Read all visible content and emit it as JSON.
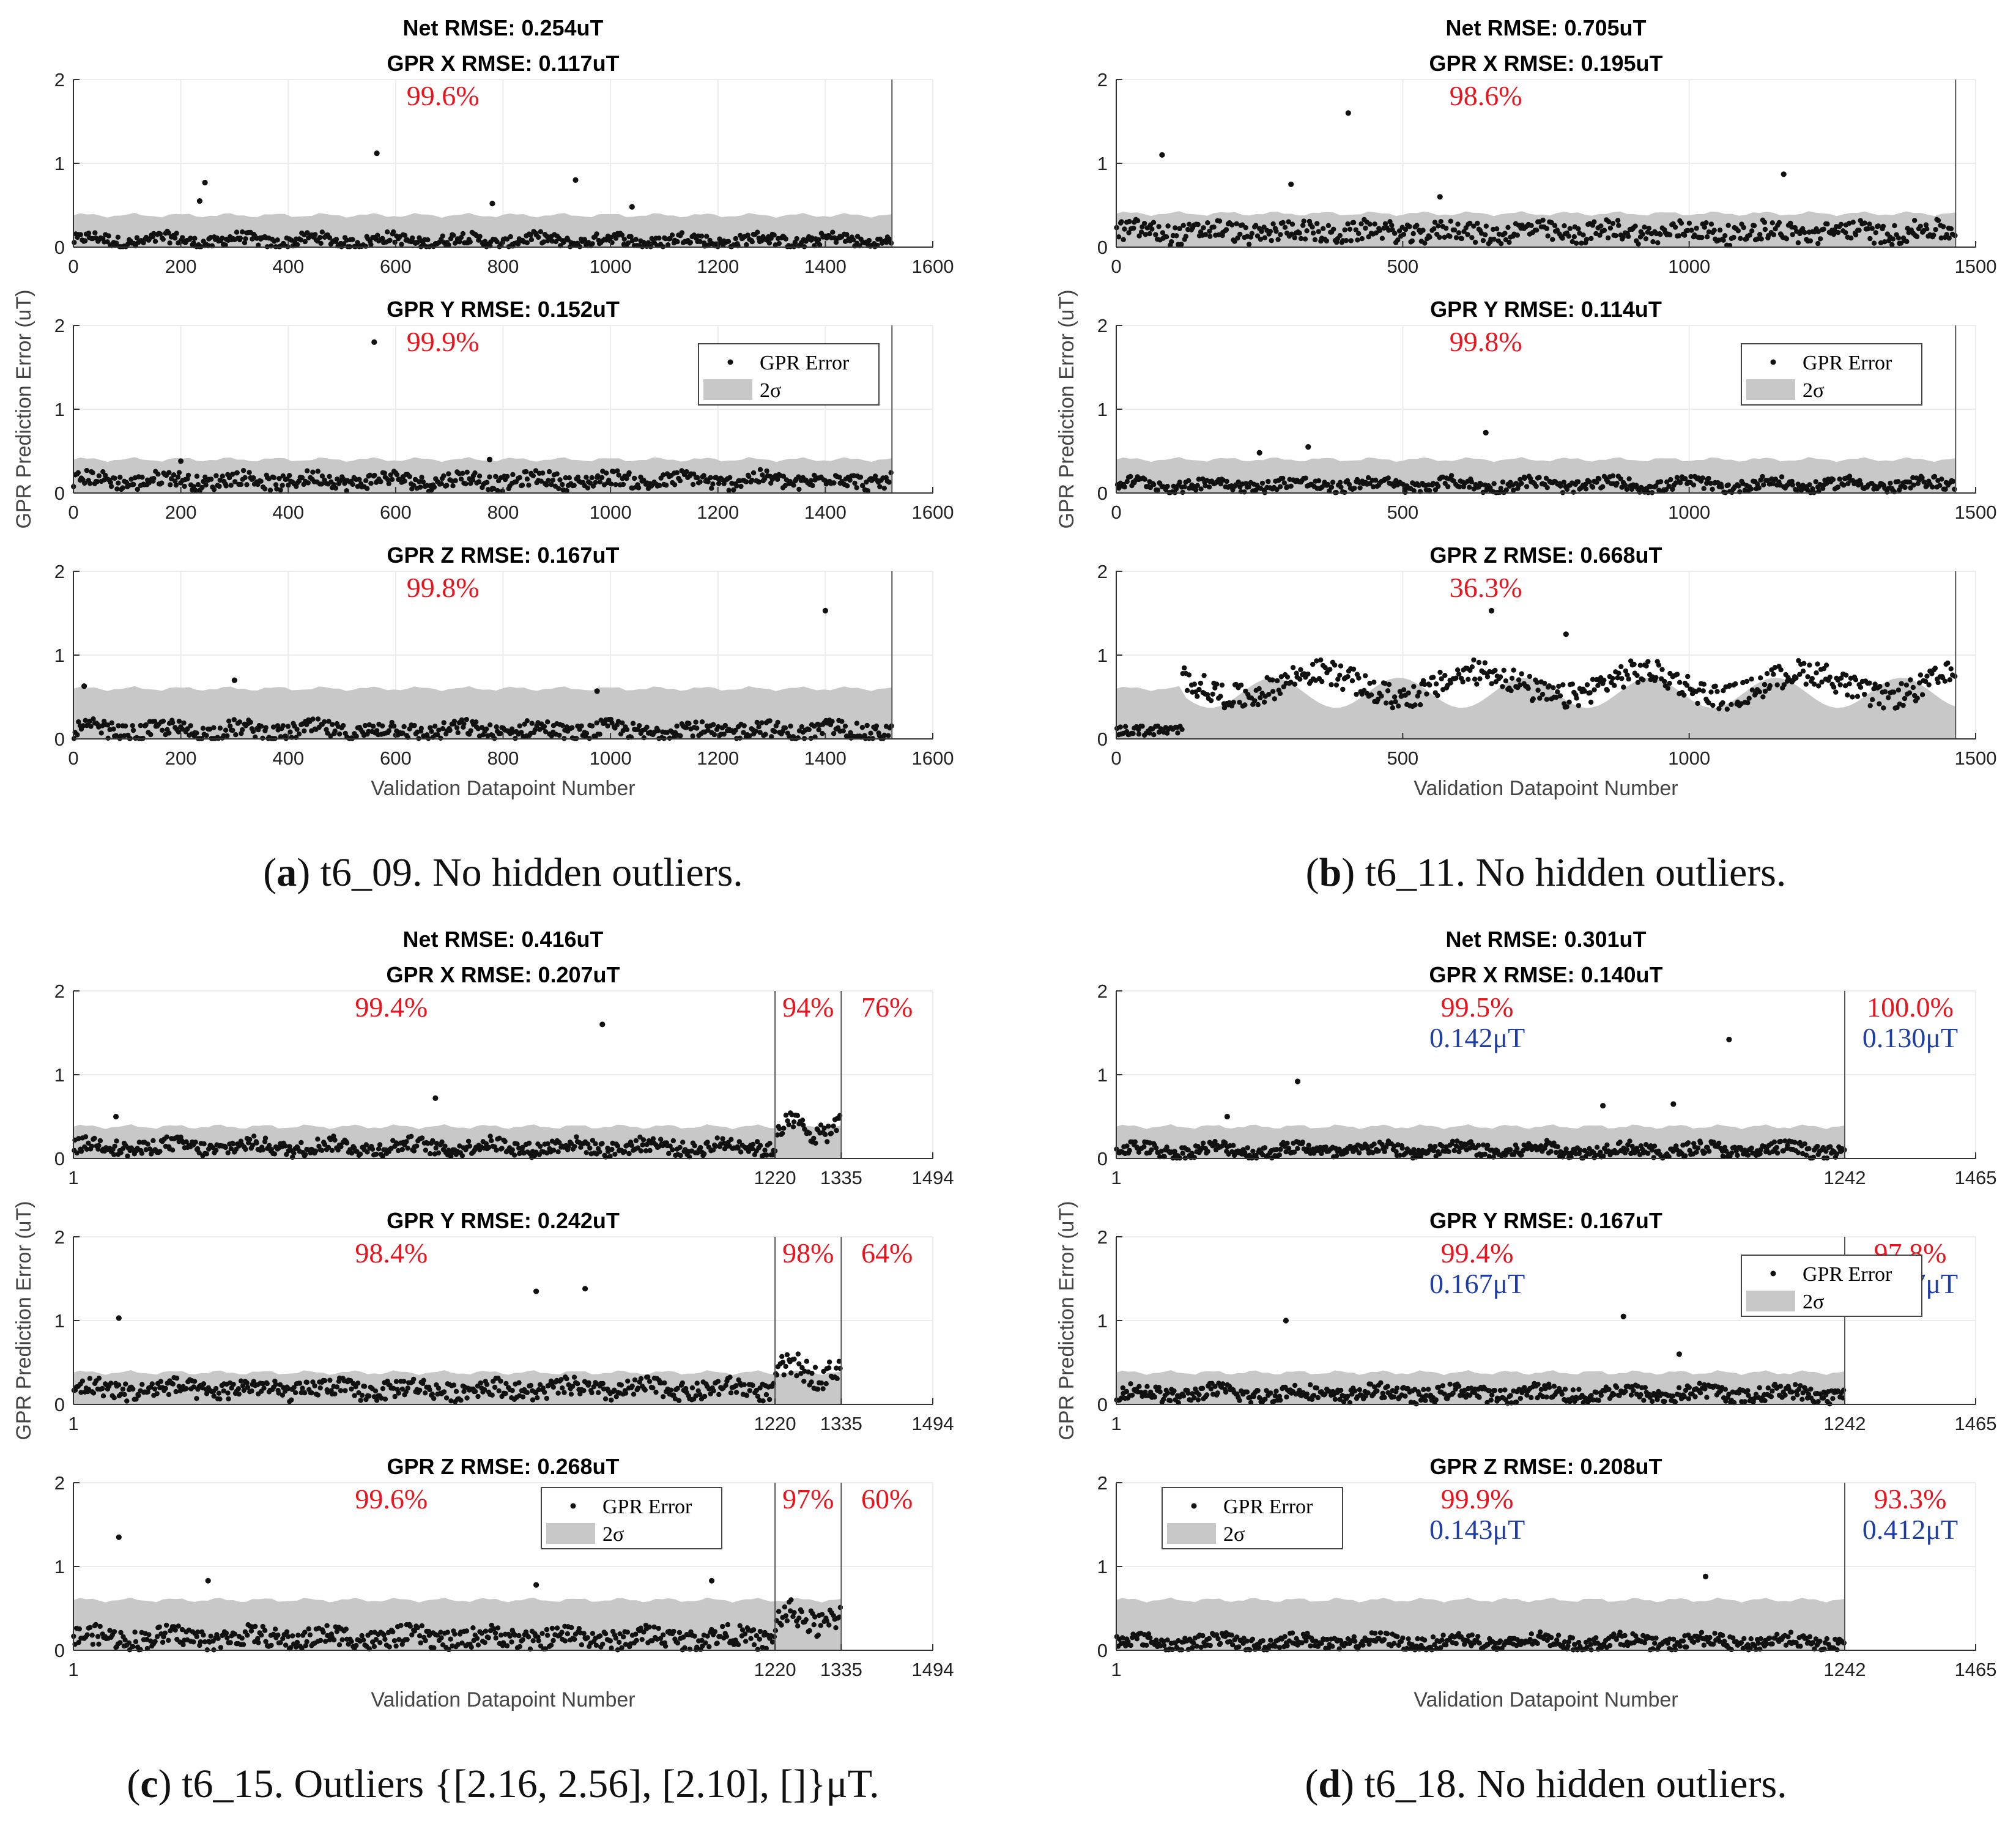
{
  "common": {
    "ylabel": "GPR Prediction Error (uT)",
    "xlabel": "Validation Datapoint Number",
    "legend": {
      "dot_label": "GPR Error",
      "band_label": "2σ"
    }
  },
  "panels": [
    {
      "caption_letter": "a",
      "caption_text": "t6_09. No hidden outliers.",
      "net_title": "Net RMSE: 0.254uT",
      "subplots": [
        {
          "title": "GPR X RMSE: 0.117uT",
          "xlim": [
            0,
            1600
          ],
          "xticks": [
            "0",
            "200",
            "400",
            "600",
            "800",
            "1000",
            "1200",
            "1400",
            "1600"
          ],
          "boundaries": [
            1524
          ],
          "pct": [
            "99.6%"
          ],
          "rmse": [],
          "band": 0.38,
          "base": 0.08,
          "spread": 0.07,
          "outliers": [
            [
              235,
              0.55
            ],
            [
              245,
              0.77
            ],
            [
              565,
              1.12
            ],
            [
              780,
              0.52
            ],
            [
              935,
              0.8
            ],
            [
              1040,
              0.48
            ]
          ]
        },
        {
          "title": "GPR Y RMSE: 0.152uT",
          "xlim": [
            0,
            1600
          ],
          "xticks": [
            "0",
            "200",
            "400",
            "600",
            "800",
            "1000",
            "1200",
            "1400",
            "1600"
          ],
          "boundaries": [
            1524
          ],
          "pct": [
            "99.9%"
          ],
          "rmse": [],
          "band": 0.4,
          "base": 0.15,
          "spread": 0.09,
          "legend": true,
          "outliers": [
            [
              560,
              1.8
            ],
            [
              200,
              0.38
            ],
            [
              775,
              0.4
            ]
          ]
        },
        {
          "title": "GPR Z RMSE: 0.167uT",
          "xlim": [
            0,
            1600
          ],
          "xticks": [
            "0",
            "200",
            "400",
            "600",
            "800",
            "1000",
            "1200",
            "1400",
            "1600"
          ],
          "boundaries": [
            1524
          ],
          "pct": [
            "99.8%"
          ],
          "rmse": [],
          "band": 0.6,
          "base": 0.1,
          "spread": 0.1,
          "outliers": [
            [
              20,
              0.63
            ],
            [
              300,
              0.7
            ],
            [
              1400,
              1.53
            ],
            [
              975,
              0.57
            ]
          ]
        }
      ]
    },
    {
      "caption_letter": "b",
      "caption_text": "t6_11. No hidden outliers.",
      "net_title": "Net RMSE: 0.705uT",
      "subplots": [
        {
          "title": "GPR X RMSE: 0.195uT",
          "xlim": [
            0,
            1500
          ],
          "xticks": [
            "0",
            "500",
            "1000",
            "1500"
          ],
          "boundaries": [
            1465
          ],
          "pct": [
            "98.6%"
          ],
          "rmse": [],
          "band": 0.4,
          "base": 0.18,
          "spread": 0.12,
          "outliers": [
            [
              80,
              1.1
            ],
            [
              305,
              0.75
            ],
            [
              405,
              1.6
            ],
            [
              565,
              0.6
            ],
            [
              1165,
              0.87
            ]
          ]
        },
        {
          "title": "GPR Y RMSE: 0.114uT",
          "xlim": [
            0,
            1500
          ],
          "xticks": [
            "0",
            "500",
            "1000",
            "1500"
          ],
          "boundaries": [
            1465
          ],
          "pct": [
            "99.8%"
          ],
          "rmse": [],
          "band": 0.4,
          "base": 0.1,
          "spread": 0.07,
          "legend": true,
          "outliers": [
            [
              250,
              0.48
            ],
            [
              335,
              0.55
            ],
            [
              645,
              0.72
            ]
          ]
        },
        {
          "title": "GPR Z RMSE: 0.668uT",
          "xlim": [
            0,
            1500
          ],
          "xticks": [
            "0",
            "500",
            "1000",
            "1500"
          ],
          "boundaries": [
            1465
          ],
          "pct": [
            "36.3%"
          ],
          "rmse": [],
          "band": 0.6,
          "base": 0.65,
          "spread": 0.15,
          "lowUntil": 115,
          "outliers": [
            [
              655,
              1.53
            ],
            [
              785,
              1.25
            ]
          ]
        }
      ]
    },
    {
      "caption_letter": "c",
      "caption_text": "t6_15. Outliers {[2.16, 2.56], [2.10], []}μT.",
      "net_title": "Net RMSE: 0.416uT",
      "subplots": [
        {
          "title": "GPR X RMSE: 0.207uT",
          "xlim": [
            1,
            1494
          ],
          "xticks": [],
          "xtickvals": [
            [
              "1",
              1
            ],
            [
              "1220",
              1220
            ],
            [
              "1335",
              1335
            ],
            [
              "1494",
              1494
            ]
          ],
          "boundaries": [
            1220,
            1335
          ],
          "pct": [
            "99.4%",
            "94%",
            "76%"
          ],
          "rmse": [],
          "band": 0.38,
          "base": 0.14,
          "spread": 0.09,
          "outliers": [
            [
              75,
              0.5
            ],
            [
              630,
              0.72
            ],
            [
              920,
              1.6
            ]
          ]
        },
        {
          "title": "GPR Y RMSE: 0.242uT",
          "xlim": [
            1,
            1494
          ],
          "xticks": [],
          "xtickvals": [
            [
              "1",
              1
            ],
            [
              "1220",
              1220
            ],
            [
              "1335",
              1335
            ],
            [
              "1494",
              1494
            ]
          ],
          "boundaries": [
            1220,
            1335
          ],
          "pct": [
            "98.4%",
            "98%",
            "64%"
          ],
          "rmse": [],
          "band": 0.38,
          "base": 0.18,
          "spread": 0.11,
          "outliers": [
            [
              80,
              1.03
            ],
            [
              805,
              1.35
            ],
            [
              890,
              1.38
            ]
          ]
        },
        {
          "title": "GPR Z RMSE: 0.268uT",
          "xlim": [
            1,
            1494
          ],
          "xticks": [],
          "xtickvals": [
            [
              "1",
              1
            ],
            [
              "1220",
              1220
            ],
            [
              "1335",
              1335
            ],
            [
              "1494",
              1494
            ]
          ],
          "boundaries": [
            1220,
            1335
          ],
          "pct": [
            "99.6%",
            "97%",
            "60%"
          ],
          "rmse": [],
          "band": 0.6,
          "base": 0.15,
          "spread": 0.12,
          "legend": true,
          "outliers": [
            [
              80,
              1.35
            ],
            [
              235,
              0.83
            ],
            [
              805,
              0.78
            ],
            [
              1110,
              0.83
            ]
          ]
        }
      ]
    },
    {
      "caption_letter": "d",
      "caption_text": "t6_18. No hidden outliers.",
      "net_title": "Net RMSE: 0.301uT",
      "subplots": [
        {
          "title": "GPR X RMSE: 0.140uT",
          "xlim": [
            1,
            1465
          ],
          "xticks": [],
          "xtickvals": [
            [
              "1",
              1
            ],
            [
              "1242",
              1242
            ],
            [
              "1465",
              1465
            ]
          ],
          "boundaries": [
            1242
          ],
          "pct": [
            "99.5%",
            "100.0%"
          ],
          "rmse": [
            "0.142μT",
            "0.130μT"
          ],
          "band": 0.38,
          "base": 0.1,
          "spread": 0.08,
          "outliers": [
            [
              190,
              0.5
            ],
            [
              310,
              0.92
            ],
            [
              830,
              0.63
            ],
            [
              950,
              0.65
            ],
            [
              1045,
              1.42
            ]
          ]
        },
        {
          "title": "GPR Y RMSE: 0.167uT",
          "xlim": [
            1,
            1465
          ],
          "xticks": [],
          "xtickvals": [
            [
              "1",
              1
            ],
            [
              "1242",
              1242
            ],
            [
              "1465",
              1465
            ]
          ],
          "boundaries": [
            1242
          ],
          "pct": [
            "99.4%",
            "97.8%"
          ],
          "rmse": [
            "0.167μT",
            "0.167μT"
          ],
          "band": 0.38,
          "base": 0.13,
          "spread": 0.09,
          "legend": true,
          "outliers": [
            [
              290,
              1.0
            ],
            [
              865,
              1.05
            ],
            [
              960,
              0.6
            ]
          ]
        },
        {
          "title": "GPR Z RMSE: 0.208uT",
          "xlim": [
            1,
            1465
          ],
          "xticks": [],
          "xtickvals": [
            [
              "1",
              1
            ],
            [
              "1242",
              1242
            ],
            [
              "1465",
              1465
            ]
          ],
          "boundaries": [
            1242
          ],
          "pct": [
            "99.9%",
            "93.3%"
          ],
          "rmse": [
            "0.143μT",
            "0.412μT"
          ],
          "band": 0.6,
          "base": 0.1,
          "spread": 0.08,
          "legendLeft": true,
          "highFrom": 1242,
          "outliers": [
            [
              1005,
              0.88
            ]
          ]
        }
      ]
    }
  ],
  "chart_data": {
    "type": "scatter",
    "ylim": [
      0,
      2
    ],
    "yticks": [
      0,
      1,
      2
    ],
    "grid": true,
    "legend_position": "upper-right"
  }
}
